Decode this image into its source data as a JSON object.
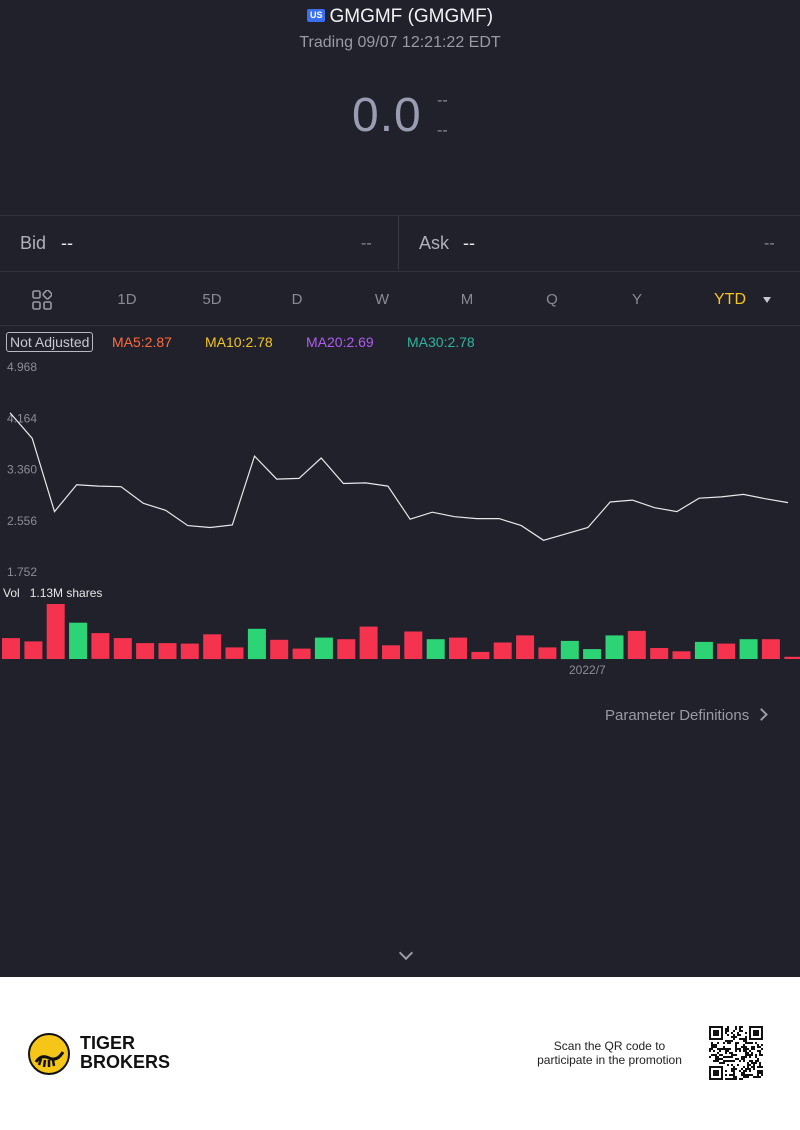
{
  "header": {
    "market_badge": "US",
    "symbol_title": "GMGMF (GMGMF)",
    "status": "Trading 09/07 12:21:22 EDT",
    "price": "0.0",
    "change": "--",
    "change_pct": "--"
  },
  "quote": {
    "bid_label": "Bid",
    "bid_value": "--",
    "bid_size": "--",
    "ask_label": "Ask",
    "ask_value": "--",
    "ask_size": "--"
  },
  "tabs": [
    "1D",
    "5D",
    "D",
    "W",
    "M",
    "Q",
    "Y",
    "YTD"
  ],
  "active_tab": "YTD",
  "indicators": {
    "adjust_label": "Not Adjusted",
    "ma5": "MA5:2.87",
    "ma10": "MA10:2.78",
    "ma20": "MA20:2.69",
    "ma30": "MA30:2.78"
  },
  "colors": {
    "ma5": "#ff6a3d",
    "ma10": "#f5c518",
    "ma20": "#b05cf0",
    "ma30": "#2bb5a0",
    "up": "#f5334f",
    "down": "#2dd476",
    "accent": "#f5c518"
  },
  "chart_data": {
    "type": "line",
    "y_ticks": [
      "4.968",
      "4.164",
      "3.360",
      "2.556",
      "1.752"
    ],
    "ylim": [
      1.752,
      4.968
    ],
    "x_label": "2022/7",
    "price_series": [
      4.25,
      3.85,
      2.7,
      3.12,
      3.1,
      3.09,
      2.83,
      2.72,
      2.48,
      2.45,
      2.49,
      3.57,
      3.21,
      3.22,
      3.54,
      3.14,
      3.15,
      3.1,
      2.58,
      2.69,
      2.62,
      2.59,
      2.59,
      2.48,
      2.25,
      2.35,
      2.45,
      2.85,
      2.88,
      2.76,
      2.7,
      2.91,
      2.93,
      2.97,
      2.9,
      2.84
    ],
    "volume_label": "Vol",
    "volume_text": "1.13M shares",
    "volume_bars": [
      {
        "v": 0.38,
        "c": "up"
      },
      {
        "v": 0.32,
        "c": "up"
      },
      {
        "v": 1.0,
        "c": "up"
      },
      {
        "v": 0.66,
        "c": "down"
      },
      {
        "v": 0.47,
        "c": "up"
      },
      {
        "v": 0.38,
        "c": "up"
      },
      {
        "v": 0.29,
        "c": "up"
      },
      {
        "v": 0.29,
        "c": "up"
      },
      {
        "v": 0.28,
        "c": "up"
      },
      {
        "v": 0.45,
        "c": "up"
      },
      {
        "v": 0.21,
        "c": "up"
      },
      {
        "v": 0.55,
        "c": "down"
      },
      {
        "v": 0.35,
        "c": "up"
      },
      {
        "v": 0.19,
        "c": "up"
      },
      {
        "v": 0.39,
        "c": "down"
      },
      {
        "v": 0.36,
        "c": "up"
      },
      {
        "v": 0.59,
        "c": "up"
      },
      {
        "v": 0.25,
        "c": "up"
      },
      {
        "v": 0.5,
        "c": "up"
      },
      {
        "v": 0.36,
        "c": "down"
      },
      {
        "v": 0.39,
        "c": "up"
      },
      {
        "v": 0.13,
        "c": "up"
      },
      {
        "v": 0.3,
        "c": "up"
      },
      {
        "v": 0.43,
        "c": "up"
      },
      {
        "v": 0.21,
        "c": "up"
      },
      {
        "v": 0.33,
        "c": "down"
      },
      {
        "v": 0.18,
        "c": "down"
      },
      {
        "v": 0.43,
        "c": "down"
      },
      {
        "v": 0.51,
        "c": "up"
      },
      {
        "v": 0.2,
        "c": "up"
      },
      {
        "v": 0.14,
        "c": "up"
      },
      {
        "v": 0.31,
        "c": "down"
      },
      {
        "v": 0.28,
        "c": "up"
      },
      {
        "v": 0.36,
        "c": "down"
      },
      {
        "v": 0.36,
        "c": "up"
      },
      {
        "v": 0.04,
        "c": "up"
      }
    ]
  },
  "param_link": "Parameter Definitions",
  "footer": {
    "brand_line1": "TIGER",
    "brand_line2": "BROKERS",
    "promo_line1": "Scan the QR code to",
    "promo_line2": "participate in the promotion"
  }
}
